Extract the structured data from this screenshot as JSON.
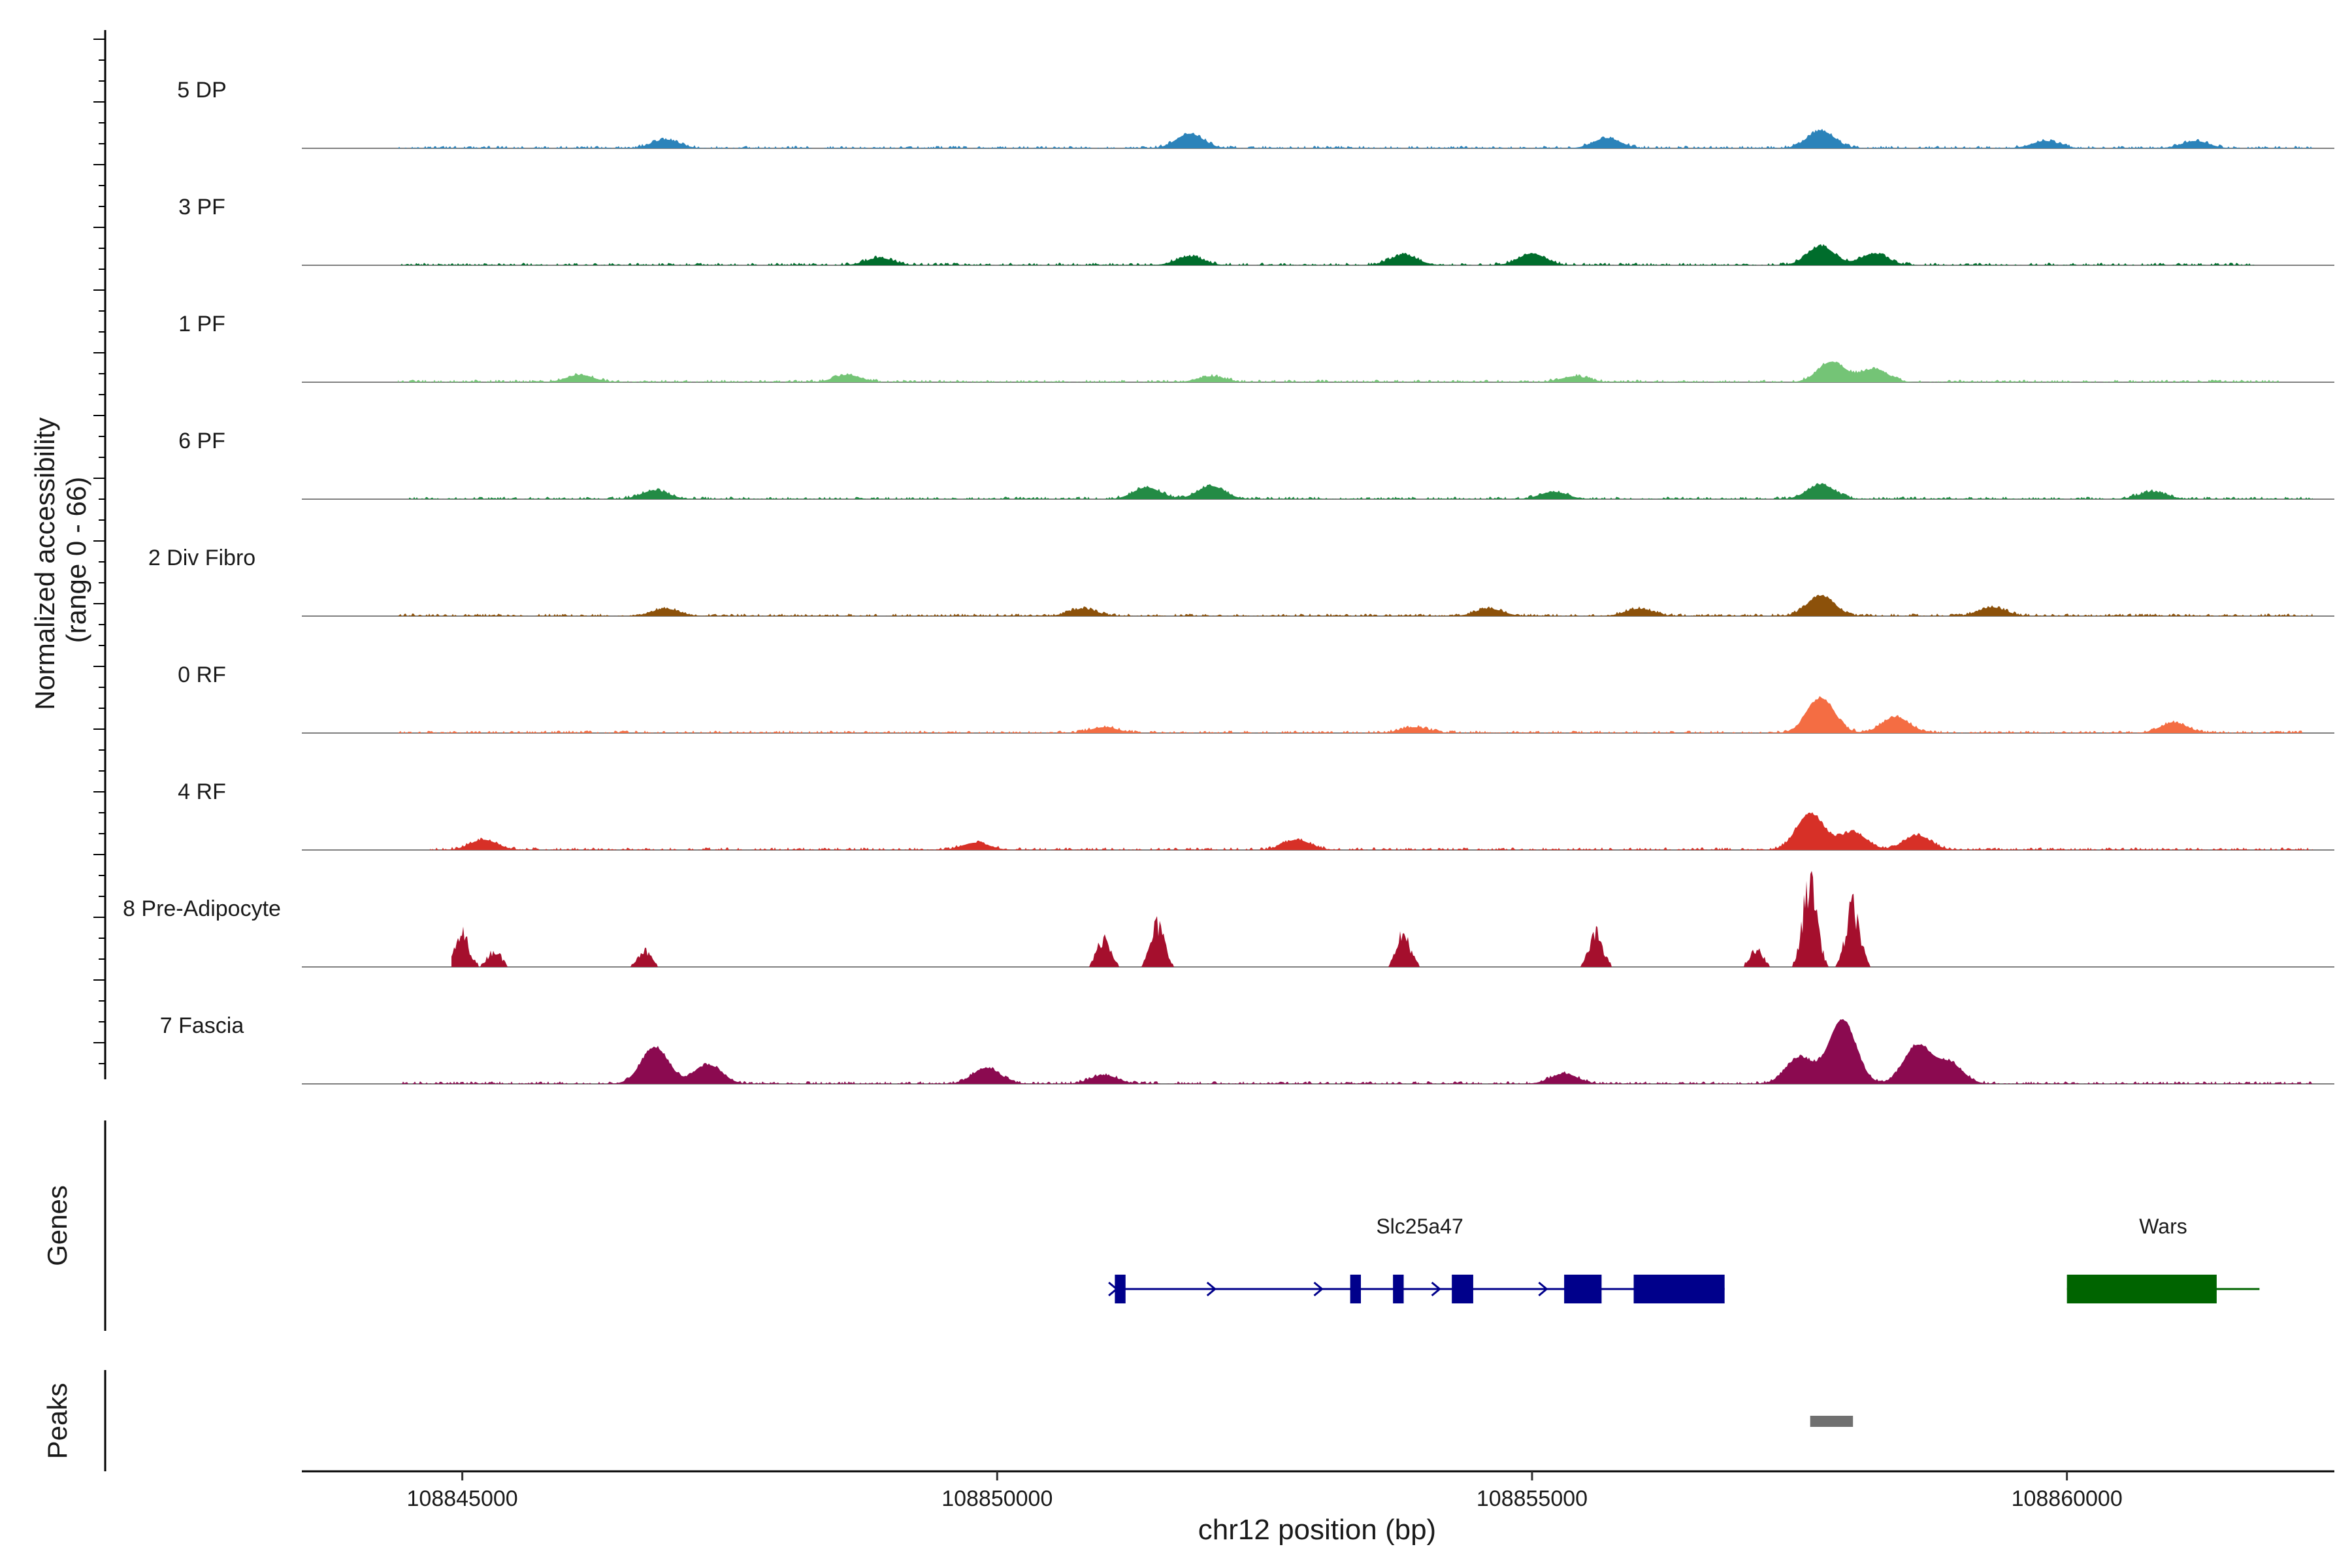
{
  "chart_data": {
    "type": "area",
    "title": "",
    "ylabel_line1": "Normalized accessibility",
    "ylabel_line2": "(range 0 - 66)",
    "xlabel": "chr12 position (bp)",
    "xlim": [
      108843500,
      108862500
    ],
    "xticks": [
      108845000,
      108850000,
      108855000,
      108860000
    ],
    "track_range": [
      0,
      66
    ],
    "genes_label": "Genes",
    "peaks_label": "Peaks",
    "tracks": [
      {
        "name": "5 DP",
        "color": "#2b83ba",
        "start": 108844400,
        "end": 108862300,
        "max": 9,
        "peaks": [
          [
            108846900,
            6
          ],
          [
            108851800,
            10
          ],
          [
            108855700,
            7
          ],
          [
            108857700,
            12
          ],
          [
            108859800,
            5
          ],
          [
            108861200,
            5
          ]
        ]
      },
      {
        "name": "3 PF",
        "color": "#006d2c",
        "start": 108844400,
        "end": 108861800,
        "max": 9,
        "peaks": [
          [
            108848900,
            5
          ],
          [
            108851800,
            6
          ],
          [
            108853800,
            7
          ],
          [
            108855000,
            8
          ],
          [
            108857700,
            13
          ],
          [
            108858200,
            8
          ]
        ]
      },
      {
        "name": "1 PF",
        "color": "#74c476",
        "start": 108844400,
        "end": 108862000,
        "max": 9,
        "peaks": [
          [
            108846100,
            5
          ],
          [
            108848600,
            5
          ],
          [
            108852000,
            4
          ],
          [
            108855400,
            4
          ],
          [
            108857800,
            14
          ],
          [
            108858200,
            9
          ]
        ]
      },
      {
        "name": "6 PF",
        "color": "#238b45",
        "start": 108844500,
        "end": 108862300,
        "max": 9,
        "peaks": [
          [
            108846800,
            6
          ],
          [
            108851400,
            8
          ],
          [
            108852000,
            9
          ],
          [
            108855200,
            5
          ],
          [
            108857700,
            10
          ],
          [
            108860800,
            5
          ]
        ]
      },
      {
        "name": "2 Div Fibro",
        "color": "#8c510a",
        "start": 108844400,
        "end": 108862300,
        "max": 9,
        "peaks": [
          [
            108846900,
            5
          ],
          [
            108850800,
            5
          ],
          [
            108854600,
            5
          ],
          [
            108856000,
            5
          ],
          [
            108857700,
            14
          ],
          [
            108859300,
            6
          ]
        ]
      },
      {
        "name": "0 RF",
        "color": "#f46d43",
        "start": 108844400,
        "end": 108862200,
        "max": 9,
        "peaks": [
          [
            108851000,
            4
          ],
          [
            108853900,
            4
          ],
          [
            108857700,
            24
          ],
          [
            108858400,
            11
          ],
          [
            108861000,
            7
          ]
        ]
      },
      {
        "name": "4 RF",
        "color": "#d73027",
        "start": 108844700,
        "end": 108862300,
        "max": 9,
        "peaks": [
          [
            108845200,
            7
          ],
          [
            108849800,
            5
          ],
          [
            108852800,
            7
          ],
          [
            108857600,
            25
          ],
          [
            108858000,
            12
          ],
          [
            108858600,
            10
          ]
        ]
      },
      {
        "name": "8 Pre-Adipocyte",
        "color": "#a50f2d",
        "start": 108844900,
        "end": 108859200,
        "max": 9,
        "peaks": [
          [
            108845000,
            22
          ],
          [
            108845300,
            11
          ],
          [
            108846700,
            11
          ],
          [
            108851000,
            20
          ],
          [
            108851500,
            28
          ],
          [
            108853800,
            22
          ],
          [
            108855600,
            22
          ],
          [
            108857100,
            11
          ],
          [
            108857600,
            60
          ],
          [
            108858000,
            40
          ]
        ]
      },
      {
        "name": "7 Fascia",
        "color": "#8b0a50",
        "start": 108844400,
        "end": 108862300,
        "max": 9,
        "peaks": [
          [
            108846800,
            25
          ],
          [
            108847300,
            13
          ],
          [
            108849900,
            11
          ],
          [
            108851000,
            6
          ],
          [
            108855300,
            7
          ],
          [
            108857500,
            18
          ],
          [
            108857900,
            44
          ],
          [
            108858600,
            26
          ],
          [
            108858900,
            14
          ]
        ]
      }
    ],
    "genes": [
      {
        "name": "Slc25a47",
        "color": "#00008b",
        "start": 108851100,
        "end": 108856800,
        "exons": [
          [
            108851100,
            108851200
          ],
          [
            108853300,
            108853400
          ],
          [
            108853700,
            108853800
          ],
          [
            108854250,
            108854450
          ],
          [
            108855300,
            108855650
          ],
          [
            108855950,
            108856800
          ]
        ],
        "arrows": [
          108851080,
          108852000,
          108853000,
          108854100,
          108855100
        ]
      },
      {
        "name": "Wars",
        "color": "#006400",
        "start": 108860000,
        "end": 108861800,
        "exons": [
          [
            108860000,
            108861400
          ]
        ],
        "arrows": []
      }
    ],
    "peaks_track": [
      {
        "start": 108857600,
        "end": 108858000,
        "color": "#707070"
      }
    ]
  }
}
